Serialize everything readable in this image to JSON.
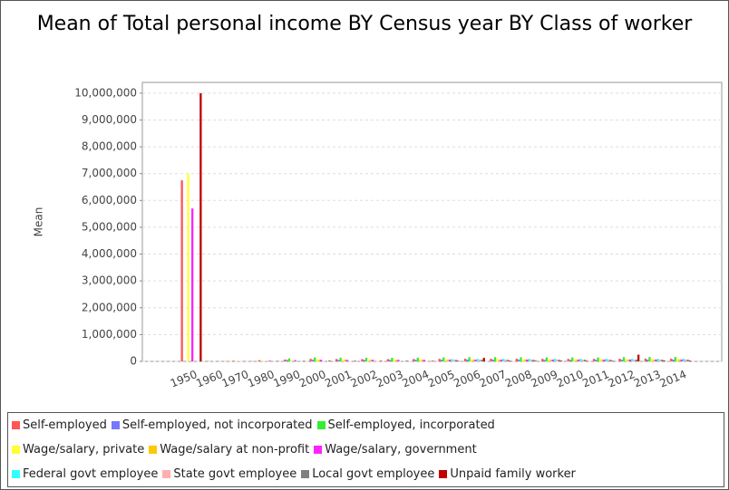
{
  "chart_data": {
    "type": "bar",
    "title": "Mean of Total personal income BY Census year BY Class of worker",
    "y_label": "Mean",
    "categories": [
      "1950",
      "1960",
      "1970",
      "1980",
      "1990",
      "2000",
      "2001",
      "2002",
      "2003",
      "2004",
      "2005",
      "2006",
      "2007",
      "2008",
      "2009",
      "2010",
      "2011",
      "2012",
      "2013",
      "2014"
    ],
    "ylim": [
      0,
      10400000
    ],
    "yticks": [
      0,
      {
        "value": 1000000,
        "label": "1,000,000"
      },
      {
        "value": 2000000,
        "label": "2,000,000"
      },
      {
        "value": 3000000,
        "label": "3,000,000"
      },
      {
        "value": 4000000,
        "label": "4,000,000"
      },
      {
        "value": 5000000,
        "label": "5,000,000"
      },
      {
        "value": 6000000,
        "label": "6,000,000"
      },
      {
        "value": 7000000,
        "label": "7,000,000"
      },
      {
        "value": 8000000,
        "label": "8,000,000"
      },
      {
        "value": 9000000,
        "label": "9,000,000"
      },
      {
        "value": 10000000,
        "label": "10,000,000"
      }
    ],
    "grid": true,
    "series": [
      {
        "name": "Self-employed",
        "color": "#ff5555",
        "values": [
          6750000,
          15000,
          25000,
          45000,
          70000,
          95000,
          90000,
          85000,
          85000,
          88000,
          95000,
          100000,
          100000,
          100000,
          95000,
          95000,
          95000,
          100000,
          105000,
          105000
        ]
      },
      {
        "name": "Self-employed, not incorporated",
        "color": "#7777ff",
        "values": [
          null,
          null,
          null,
          null,
          50000,
          60000,
          55000,
          55000,
          55000,
          58000,
          60000,
          62000,
          62000,
          60000,
          58000,
          58000,
          60000,
          62000,
          62000,
          65000
        ]
      },
      {
        "name": "Self-employed, incorporated",
        "color": "#33ee33",
        "values": [
          null,
          null,
          null,
          null,
          110000,
          150000,
          140000,
          135000,
          135000,
          140000,
          150000,
          160000,
          160000,
          155000,
          150000,
          150000,
          150000,
          160000,
          165000,
          165000
        ]
      },
      {
        "name": "Wage/salary, private",
        "color": "#ffff33",
        "values": [
          7000000,
          8000,
          15000,
          30000,
          50000,
          75000,
          72000,
          70000,
          70000,
          72000,
          75000,
          80000,
          80000,
          80000,
          80000,
          80000,
          80000,
          85000,
          85000,
          88000
        ]
      },
      {
        "name": "Wage/salary at non-profit",
        "color": "#ffc800",
        "values": [
          null,
          null,
          null,
          null,
          null,
          60000,
          58000,
          58000,
          58000,
          60000,
          62000,
          65000,
          65000,
          66000,
          66000,
          68000,
          68000,
          70000,
          70000,
          72000
        ]
      },
      {
        "name": "Wage/salary, government",
        "color": "#ff22ff",
        "values": [
          5700000,
          8000,
          14000,
          28000,
          45000,
          60000,
          60000,
          60000,
          60000,
          62000,
          64000,
          66000,
          66000,
          68000,
          68000,
          68000,
          68000,
          70000,
          70000,
          72000
        ]
      },
      {
        "name": "Federal govt employee",
        "color": "#33ffff",
        "values": [
          null,
          null,
          null,
          null,
          null,
          null,
          null,
          null,
          null,
          null,
          90000,
          95000,
          95000,
          98000,
          100000,
          100000,
          100000,
          100000,
          100000,
          100000
        ]
      },
      {
        "name": "State govt employee",
        "color": "#ffafaf",
        "values": [
          null,
          null,
          null,
          null,
          null,
          null,
          null,
          null,
          null,
          null,
          60000,
          62000,
          62000,
          64000,
          65000,
          65000,
          66000,
          66000,
          68000,
          68000
        ]
      },
      {
        "name": "Local govt employee",
        "color": "#808080",
        "values": [
          null,
          null,
          null,
          null,
          null,
          null,
          null,
          null,
          null,
          null,
          58000,
          60000,
          60000,
          62000,
          62000,
          63000,
          63000,
          64000,
          64000,
          65000
        ]
      },
      {
        "name": "Unpaid family worker",
        "color": "#c00000",
        "values": [
          10000000,
          3000,
          5000,
          10000,
          15000,
          25000,
          20000,
          20000,
          20000,
          20000,
          20000,
          130000,
          25000,
          25000,
          25000,
          20000,
          20000,
          250000,
          30000,
          25000
        ]
      }
    ]
  }
}
